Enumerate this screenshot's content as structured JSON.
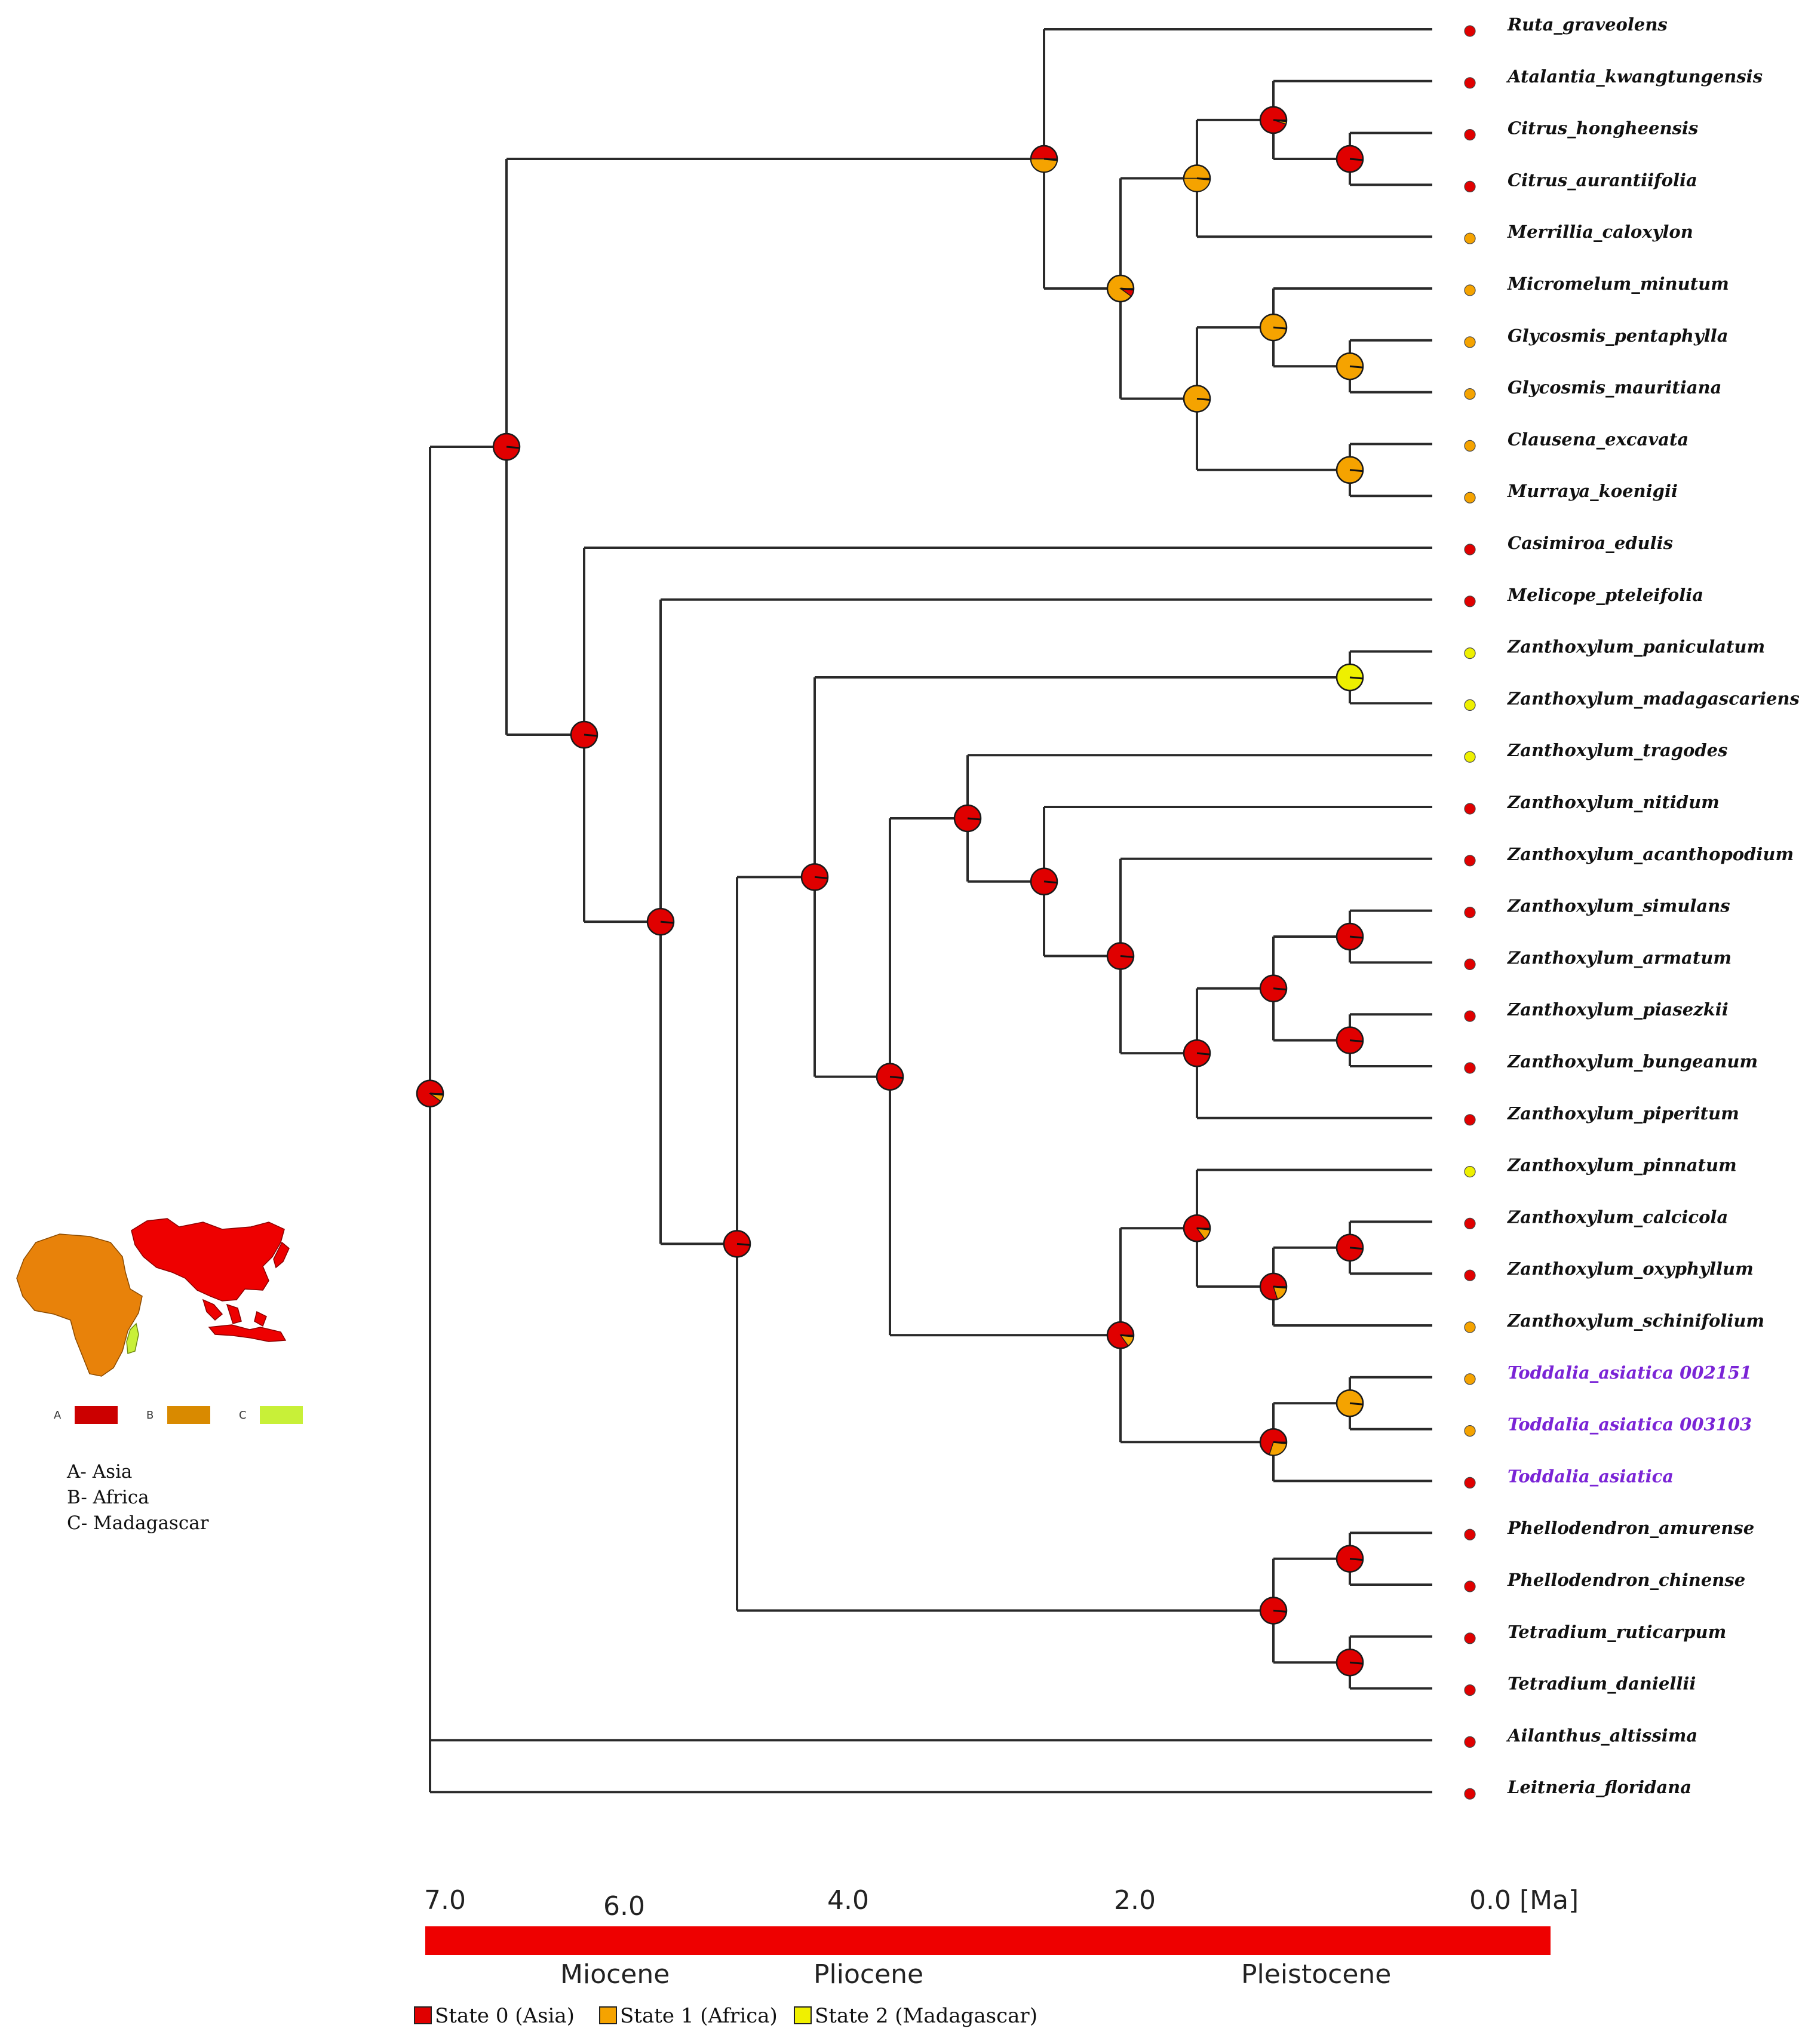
{
  "tree": {
    "root_state": "A",
    "taxa": [
      {
        "name": "Ruta_graveolens",
        "state": "A",
        "highlight": false
      },
      {
        "name": "Atalantia_kwangtungensis",
        "state": "A",
        "highlight": false
      },
      {
        "name": "Citrus_hongheensis",
        "state": "A",
        "highlight": false
      },
      {
        "name": "Citrus_aurantiifolia",
        "state": "A",
        "highlight": false
      },
      {
        "name": "Merrillia_caloxylon",
        "state": "B",
        "highlight": false
      },
      {
        "name": "Micromelum_minutum",
        "state": "B",
        "highlight": false
      },
      {
        "name": "Glycosmis_pentaphylla",
        "state": "B",
        "highlight": false
      },
      {
        "name": "Glycosmis_mauritiana",
        "state": "B",
        "highlight": false
      },
      {
        "name": "Clausena_excavata",
        "state": "B",
        "highlight": false
      },
      {
        "name": "Murraya_koenigii",
        "state": "B",
        "highlight": false
      },
      {
        "name": "Casimiroa_edulis",
        "state": "A",
        "highlight": false
      },
      {
        "name": "Melicope_pteleifolia",
        "state": "A",
        "highlight": false
      },
      {
        "name": "Zanthoxylum_paniculatum",
        "state": "C",
        "highlight": false
      },
      {
        "name": "Zanthoxylum_madagascariense",
        "state": "C",
        "highlight": false
      },
      {
        "name": "Zanthoxylum_tragodes",
        "state": "C",
        "highlight": false
      },
      {
        "name": "Zanthoxylum_nitidum",
        "state": "A",
        "highlight": false
      },
      {
        "name": "Zanthoxylum_acanthopodium",
        "state": "A",
        "highlight": false
      },
      {
        "name": "Zanthoxylum_simulans",
        "state": "A",
        "highlight": false
      },
      {
        "name": "Zanthoxylum_armatum",
        "state": "A",
        "highlight": false
      },
      {
        "name": "Zanthoxylum_piasezkii",
        "state": "A",
        "highlight": false
      },
      {
        "name": "Zanthoxylum_bungeanum",
        "state": "A",
        "highlight": false
      },
      {
        "name": "Zanthoxylum_piperitum",
        "state": "A",
        "highlight": false
      },
      {
        "name": "Zanthoxylum_pinnatum",
        "state": "C",
        "highlight": false
      },
      {
        "name": "Zanthoxylum_calcicola",
        "state": "A",
        "highlight": false
      },
      {
        "name": "Zanthoxylum_oxyphyllum",
        "state": "A",
        "highlight": false
      },
      {
        "name": "Zanthoxylum_schinifolium",
        "state": "B",
        "highlight": false
      },
      {
        "name": "Toddalia_asiatica 002151",
        "state": "B",
        "highlight": true
      },
      {
        "name": "Toddalia_asiatica 003103",
        "state": "B",
        "highlight": true
      },
      {
        "name": "Toddalia_asiatica",
        "state": "A",
        "highlight": true
      },
      {
        "name": "Phellodendron_amurense",
        "state": "A",
        "highlight": false
      },
      {
        "name": "Phellodendron_chinense",
        "state": "A",
        "highlight": false
      },
      {
        "name": "Tetradium_ruticarpum",
        "state": "A",
        "highlight": false
      },
      {
        "name": "Tetradium_daniellii",
        "state": "A",
        "highlight": false
      },
      {
        "name": "Ailanthus_altissima",
        "state": "A",
        "highlight": false
      },
      {
        "name": "Leitneria_floridana",
        "state": "A",
        "highlight": false
      }
    ]
  },
  "timescale": {
    "ticks": [
      "7.0",
      "6.0",
      "4.0",
      "2.0",
      "0.0 [Ma]"
    ],
    "epochs": [
      "Miocene",
      "Pliocene",
      "Pleistocene"
    ]
  },
  "legend": {
    "items": [
      {
        "label": "State 0 (Asia)",
        "color": "#e00000"
      },
      {
        "label": "State 1 (Africa)",
        "color": "#f5a300"
      },
      {
        "label": "State 2 (Madagascar)",
        "color": "#f0f000"
      }
    ]
  },
  "map_inset": {
    "keys": [
      {
        "letter": "A",
        "color": "#cc0000"
      },
      {
        "letter": "B",
        "color": "#d98a00"
      },
      {
        "letter": "C",
        "color": "#c8f038"
      }
    ],
    "labels": [
      "A- Asia",
      "B- Africa",
      "C- Madagascar"
    ]
  },
  "colors": {
    "asia": "#e00000",
    "africa": "#f5a300",
    "madagascar": "#eef000",
    "map_africa": "#e8820a",
    "map_asia": "#ee0000",
    "timebar": "#ee0000",
    "highlight_text": "#7a24d6"
  }
}
